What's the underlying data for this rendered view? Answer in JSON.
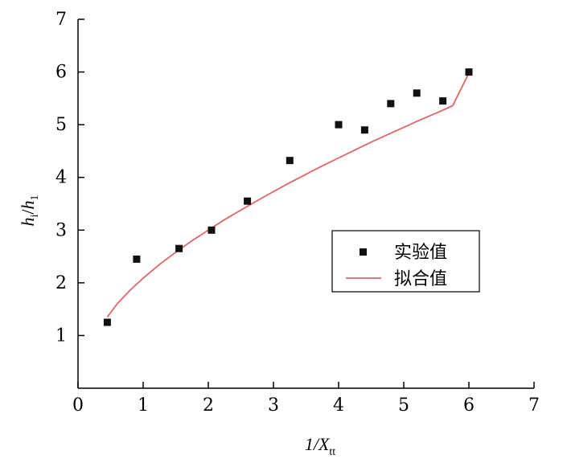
{
  "chart_data": {
    "type": "scatter",
    "xlim": [
      0,
      7
    ],
    "ylim": [
      0,
      7
    ],
    "x_ticks": [
      0,
      1,
      2,
      3,
      4,
      5,
      6,
      7
    ],
    "y_ticks": [
      1,
      2,
      3,
      4,
      5,
      6,
      7
    ],
    "tick_labels_x": [
      "0",
      "1",
      "2",
      "3",
      "4",
      "5",
      "6",
      "7"
    ],
    "tick_labels_y": [
      "1",
      "2",
      "3",
      "4",
      "5",
      "6",
      "7"
    ],
    "xlabel": {
      "main": "1/X",
      "sub": "tt"
    },
    "ylabel": {
      "h1": "h",
      "s1": "i",
      "sep": "/",
      "h2": "h",
      "s2": "1"
    },
    "grid": false,
    "legend_position": "center-right",
    "series": [
      {
        "name": "实验值",
        "kind": "scatter",
        "color": "#111111",
        "x": [
          0.45,
          0.9,
          1.55,
          2.05,
          2.6,
          3.25,
          4.0,
          4.4,
          4.8,
          5.2,
          5.6,
          6.0
        ],
        "y": [
          1.25,
          2.45,
          2.65,
          3.0,
          3.55,
          4.32,
          5.0,
          4.9,
          5.4,
          5.6,
          5.45,
          6.0
        ]
      },
      {
        "name": "拟合值",
        "kind": "line",
        "color": "#e06666",
        "x": [
          0.45,
          0.6,
          0.8,
          1.0,
          1.25,
          1.5,
          1.75,
          2.0,
          2.25,
          2.5,
          2.75,
          3.0,
          3.25,
          3.5,
          3.75,
          4.0,
          4.25,
          4.5,
          4.75,
          5.0,
          5.25,
          5.5,
          5.75,
          6.0
        ],
        "y": [
          1.35,
          1.6,
          1.86,
          2.09,
          2.35,
          2.58,
          2.8,
          3.0,
          3.2,
          3.38,
          3.56,
          3.73,
          3.9,
          4.06,
          4.22,
          4.37,
          4.52,
          4.67,
          4.81,
          4.95,
          5.09,
          5.22,
          5.36,
          5.98
        ]
      }
    ]
  }
}
